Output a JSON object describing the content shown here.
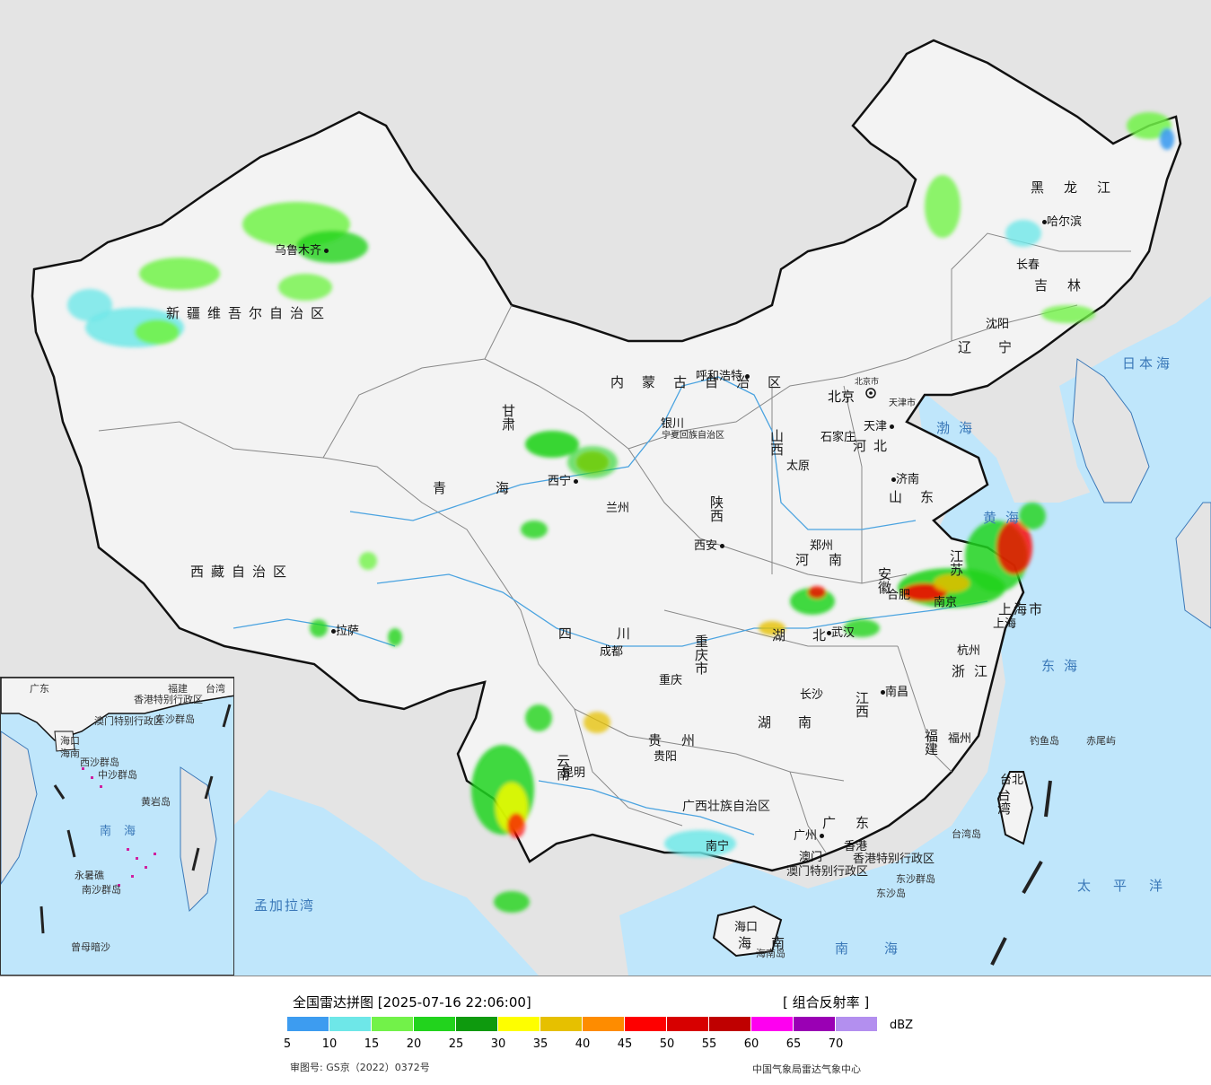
{
  "map": {
    "provinces": [
      {
        "id": "xinjiang",
        "label": "新疆维吾尔自治区"
      },
      {
        "id": "xizang",
        "label": "西藏自治区"
      },
      {
        "id": "qinghai",
        "label": "青海"
      },
      {
        "id": "gansu",
        "label": "甘肃"
      },
      {
        "id": "neimenggu",
        "label": "内蒙古自治区"
      },
      {
        "id": "ningxia",
        "label": "宁夏回族自治区"
      },
      {
        "id": "heilongjiang",
        "label": "黑龙江"
      },
      {
        "id": "jilin",
        "label": "吉林"
      },
      {
        "id": "liaoning",
        "label": "辽宁"
      },
      {
        "id": "hebei",
        "label": "河北"
      },
      {
        "id": "shanxi",
        "label": "山西"
      },
      {
        "id": "shandong",
        "label": "山东"
      },
      {
        "id": "shaanxi",
        "label": "陕西"
      },
      {
        "id": "henan",
        "label": "河南"
      },
      {
        "id": "anhui",
        "label": "安徽"
      },
      {
        "id": "jiangsu",
        "label": "江苏"
      },
      {
        "id": "shanghai",
        "label": "上海市"
      },
      {
        "id": "zhejiang",
        "label": "浙江"
      },
      {
        "id": "sichuan",
        "label": "四川"
      },
      {
        "id": "chongqing",
        "label": "重庆市"
      },
      {
        "id": "hubei",
        "label": "湖北"
      },
      {
        "id": "hunan",
        "label": "湖南"
      },
      {
        "id": "jiangxi",
        "label": "江西"
      },
      {
        "id": "fujian",
        "label": "福建"
      },
      {
        "id": "guizhou",
        "label": "贵州"
      },
      {
        "id": "yunnan",
        "label": "云南"
      },
      {
        "id": "guangxi",
        "label": "广西壮族自治区"
      },
      {
        "id": "guangdong",
        "label": "广东"
      },
      {
        "id": "hainan",
        "label": "海南"
      },
      {
        "id": "taiwan",
        "label": "台湾"
      },
      {
        "id": "tianjin",
        "label": "天津市"
      },
      {
        "id": "beijing",
        "label": "北京市"
      },
      {
        "id": "hongkong",
        "label": "香港特别行政区"
      },
      {
        "id": "macau",
        "label": "澳门特别行政区"
      }
    ],
    "cities": {
      "urumqi": "乌鲁木齐",
      "lhasa": "拉萨",
      "xining": "西宁",
      "lanzhou": "兰州",
      "yinchuan": "银川",
      "hohhot": "呼和浩特",
      "beijing": "北京",
      "tianjin": "天津",
      "shijiazhuang": "石家庄",
      "taiyuan": "太原",
      "jinan": "济南",
      "zhengzhou": "郑州",
      "xian": "西安",
      "chengdu": "成都",
      "chongqing": "重庆",
      "wuhan": "武汉",
      "hefei": "合肥",
      "nanjing": "南京",
      "shanghai": "上海",
      "hangzhou": "杭州",
      "changsha": "长沙",
      "nanchang": "南昌",
      "fuzhou": "福州",
      "guiyang": "贵阳",
      "kunming": "昆明",
      "nanning": "南宁",
      "guangzhou": "广州",
      "macau": "澳门",
      "hongkong": "香港",
      "haikou": "海口",
      "taibei": "台北",
      "shenyang": "沈阳",
      "changchun": "长春",
      "harbin": "哈尔滨"
    },
    "seas": {
      "bohai": "渤海",
      "huanghai": "黄海",
      "donghai": "东海",
      "nanhai": "南海",
      "taipingyang": "太平洋",
      "ribenhai": "日本海",
      "mengjialawan": "孟加拉湾"
    },
    "islands": {
      "diaoyu": "钓鱼岛",
      "chiwei": "赤尾屿",
      "taiwan_island": "台湾岛",
      "dongsha_qundao": "东沙群岛",
      "dongsha_dao": "东沙岛",
      "hainan_island": "海南岛"
    },
    "inset": {
      "labels": [
        "广东",
        "福建",
        "台湾",
        "香港特别行政区",
        "澳门特别行政区",
        "海口",
        "海南",
        "东沙群岛",
        "西沙群岛",
        "中沙群岛",
        "黄岩岛",
        "南海",
        "永暑礁",
        "南沙群岛",
        "曾母暗沙"
      ]
    }
  },
  "legend": {
    "title": "全国雷达拼图 [2025-07-16 22:06:00]",
    "product": "[ 组合反射率 ]",
    "unit": "dBZ",
    "ticks": [
      "5",
      "10",
      "15",
      "20",
      "25",
      "30",
      "35",
      "40",
      "45",
      "50",
      "55",
      "60",
      "65",
      "70"
    ],
    "colors": [
      "#3d9cf0",
      "#6ee7e8",
      "#72f249",
      "#22d31d",
      "#0e9a0e",
      "#fefe00",
      "#e6c000",
      "#fe8c00",
      "#fe0000",
      "#d70000",
      "#bf0000",
      "#fe00f0",
      "#9a00b4",
      "#b38fef"
    ],
    "review": "审图号: GS京（2022）0372号",
    "credit": "中国气象局雷达气象中心"
  }
}
